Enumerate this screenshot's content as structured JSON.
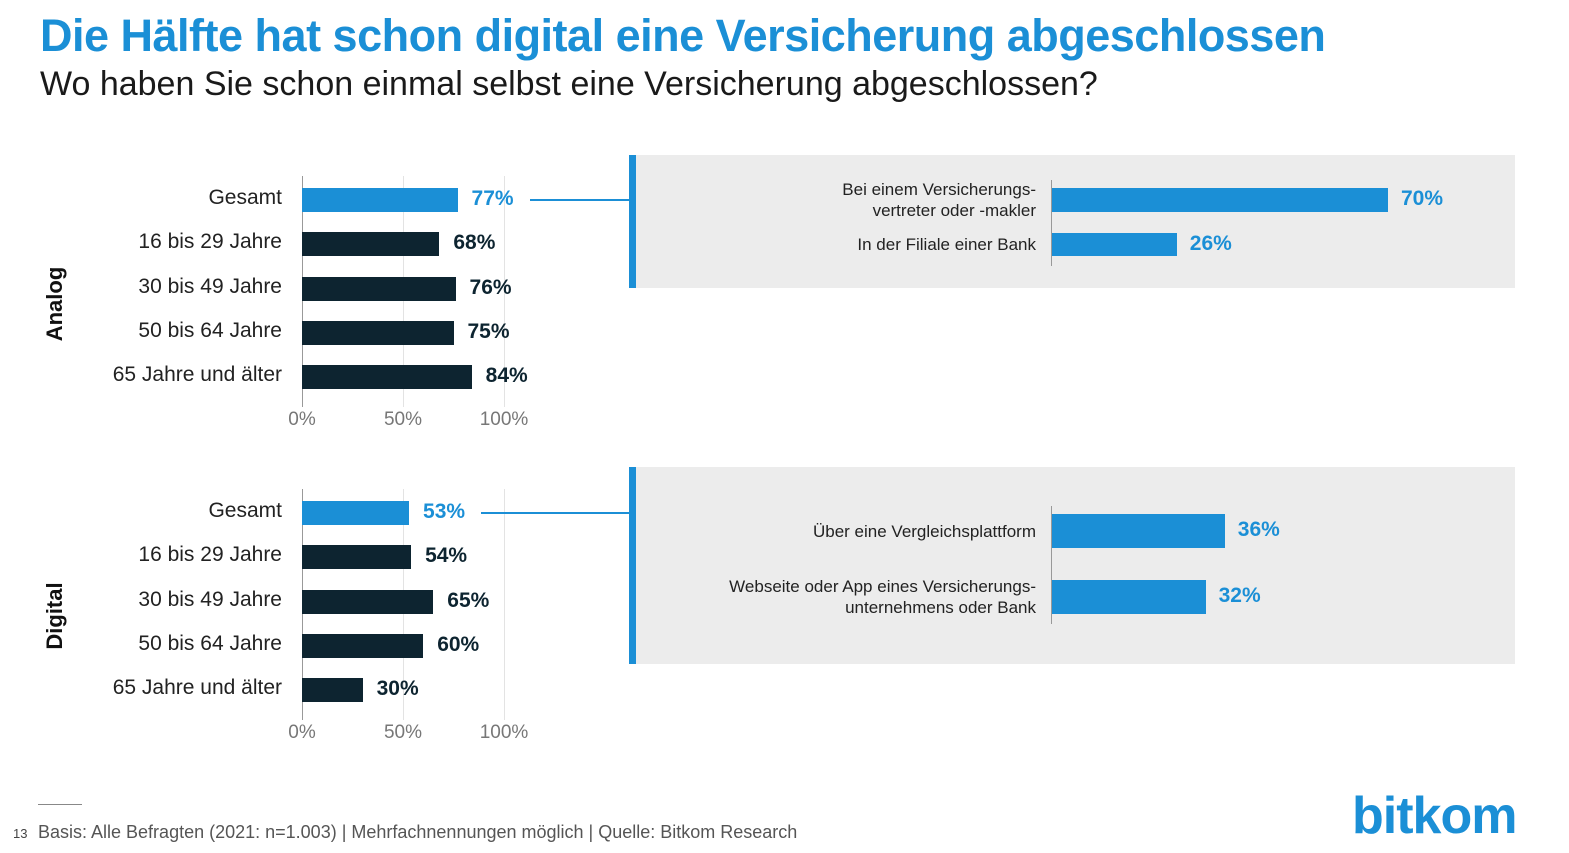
{
  "title": "Die Hälfte hat schon digital eine Versicherung abgeschlossen",
  "subtitle": "Wo haben Sie schon einmal selbst eine Versicherung abgeschlossen?",
  "colors": {
    "accent": "#1b8fd6",
    "dark": "#0d2430",
    "panel": "#ececec"
  },
  "chart_data": [
    {
      "type": "bar",
      "orientation": "horizontal",
      "group": "Analog",
      "categories": [
        "Gesamt",
        "16 bis 29 Jahre",
        "30 bis 49 Jahre",
        "50 bis 64 Jahre",
        "65 Jahre und älter"
      ],
      "values": [
        77,
        68,
        76,
        75,
        84
      ],
      "value_labels": [
        "77%",
        "68%",
        "76%",
        "75%",
        "84%"
      ],
      "xlim": [
        0,
        100
      ],
      "xticks": [
        "0%",
        "50%",
        "100%"
      ],
      "detail": {
        "categories": [
          "Bei einem Versicherungs-\nvertreter oder -makler",
          "In der Filiale einer Bank"
        ],
        "values": [
          70,
          26
        ],
        "value_labels": [
          "70%",
          "26%"
        ]
      }
    },
    {
      "type": "bar",
      "orientation": "horizontal",
      "group": "Digital",
      "categories": [
        "Gesamt",
        "16 bis 29 Jahre",
        "30 bis 49 Jahre",
        "50 bis 64 Jahre",
        "65 Jahre und älter"
      ],
      "values": [
        53,
        54,
        65,
        60,
        30
      ],
      "value_labels": [
        "53%",
        "54%",
        "65%",
        "60%",
        "30%"
      ],
      "xlim": [
        0,
        100
      ],
      "xticks": [
        "0%",
        "50%",
        "100%"
      ],
      "detail": {
        "categories": [
          "Über eine Vergleichsplattform",
          "Webseite oder App eines Versicherungs-\nunternehmens oder Bank"
        ],
        "values": [
          36,
          32
        ],
        "value_labels": [
          "36%",
          "32%"
        ]
      }
    }
  ],
  "footer": {
    "page_number": "13",
    "note": "Basis: Alle Befragten (2021: n=1.003) | Mehrfachnennungen möglich |  Quelle: Bitkom Research"
  },
  "logo": {
    "text": "bitkom"
  }
}
